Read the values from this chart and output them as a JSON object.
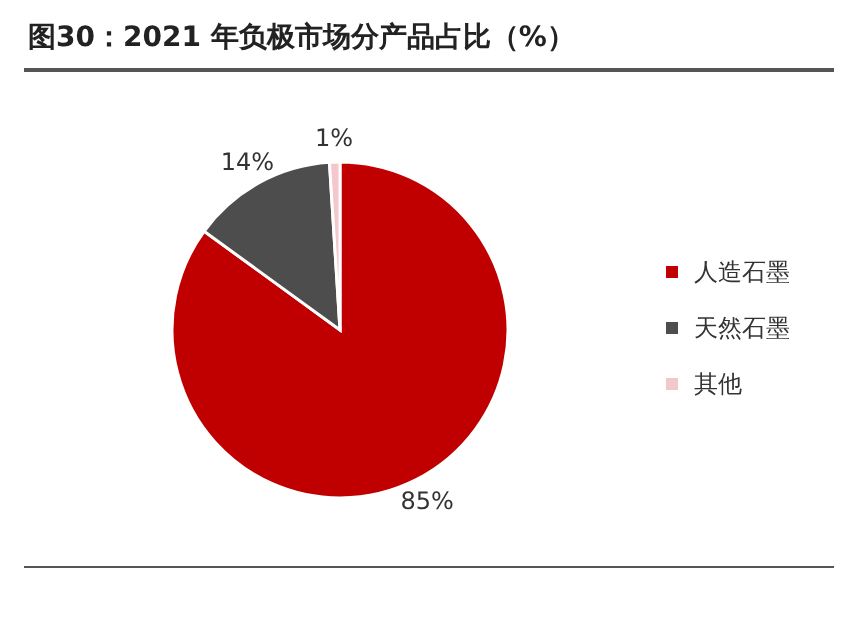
{
  "chart_data": {
    "type": "pie",
    "title": "图30：2021 年负极市场分产品占比（%）",
    "categories": [
      "人造石墨",
      "天然石墨",
      "其他"
    ],
    "values": [
      85,
      14,
      1
    ],
    "colors": [
      "#c00000",
      "#4d4d4d",
      "#f4c7cc"
    ],
    "value_labels": [
      "85%",
      "14%",
      "1%"
    ],
    "legend": "right"
  }
}
